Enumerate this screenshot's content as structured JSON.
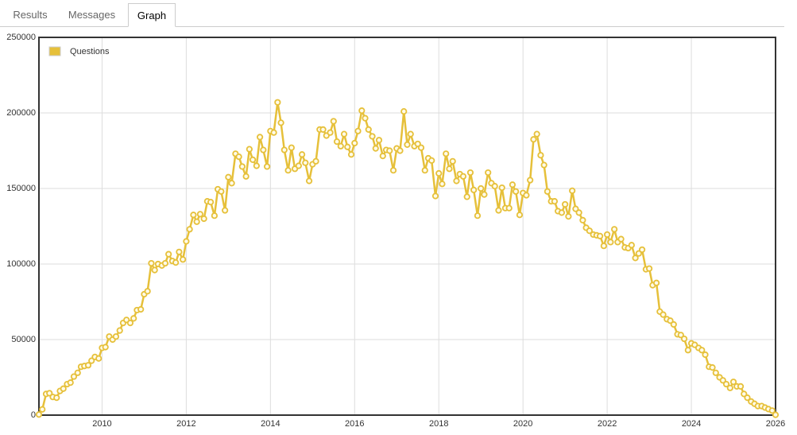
{
  "tabs": [
    "Results",
    "Messages",
    "Graph"
  ],
  "active_tab": 2,
  "chart_data": {
    "type": "line",
    "grid": true,
    "legend": "top-left",
    "xlim": [
      2008.5,
      2026
    ],
    "xticks": [
      2010,
      2012,
      2014,
      2016,
      2018,
      2020,
      2022,
      2024,
      2026
    ],
    "ylim": [
      0,
      250000
    ],
    "yticks": [
      0,
      50000,
      100000,
      150000,
      200000,
      250000
    ],
    "x": [
      2008.5,
      2008.58,
      2008.67,
      2008.75,
      2008.83,
      2008.92,
      2009,
      2009.08,
      2009.17,
      2009.25,
      2009.33,
      2009.42,
      2009.5,
      2009.58,
      2009.67,
      2009.75,
      2009.83,
      2009.92,
      2010,
      2010.08,
      2010.17,
      2010.25,
      2010.33,
      2010.42,
      2010.5,
      2010.58,
      2010.67,
      2010.75,
      2010.83,
      2010.92,
      2011,
      2011.08,
      2011.17,
      2011.25,
      2011.33,
      2011.42,
      2011.5,
      2011.58,
      2011.67,
      2011.75,
      2011.83,
      2011.92,
      2012,
      2012.08,
      2012.17,
      2012.25,
      2012.33,
      2012.42,
      2012.5,
      2012.58,
      2012.67,
      2012.75,
      2012.83,
      2012.92,
      2013,
      2013.08,
      2013.17,
      2013.25,
      2013.33,
      2013.42,
      2013.5,
      2013.58,
      2013.67,
      2013.75,
      2013.83,
      2013.92,
      2014,
      2014.08,
      2014.17,
      2014.25,
      2014.33,
      2014.42,
      2014.5,
      2014.58,
      2014.67,
      2014.75,
      2014.83,
      2014.92,
      2015,
      2015.08,
      2015.17,
      2015.25,
      2015.33,
      2015.42,
      2015.5,
      2015.58,
      2015.67,
      2015.75,
      2015.83,
      2015.92,
      2016,
      2016.08,
      2016.17,
      2016.25,
      2016.33,
      2016.42,
      2016.5,
      2016.58,
      2016.67,
      2016.75,
      2016.83,
      2016.92,
      2017,
      2017.08,
      2017.17,
      2017.25,
      2017.33,
      2017.42,
      2017.5,
      2017.58,
      2017.67,
      2017.75,
      2017.83,
      2017.92,
      2018,
      2018.08,
      2018.17,
      2018.25,
      2018.33,
      2018.42,
      2018.5,
      2018.58,
      2018.67,
      2018.75,
      2018.83,
      2018.92,
      2019,
      2019.08,
      2019.17,
      2019.25,
      2019.33,
      2019.42,
      2019.5,
      2019.58,
      2019.67,
      2019.75,
      2019.83,
      2019.92,
      2020,
      2020.08,
      2020.17,
      2020.25,
      2020.33,
      2020.42,
      2020.5,
      2020.58,
      2020.67,
      2020.75,
      2020.83,
      2020.92,
      2021,
      2021.08,
      2021.17,
      2021.25,
      2021.33,
      2021.42,
      2021.5,
      2021.58,
      2021.67,
      2021.75,
      2021.83,
      2021.92,
      2022,
      2022.08,
      2022.17,
      2022.25,
      2022.33,
      2022.42,
      2022.5,
      2022.58,
      2022.67,
      2022.75,
      2022.83,
      2022.92,
      2023,
      2023.08,
      2023.17,
      2023.25,
      2023.33,
      2023.42,
      2023.5,
      2023.58,
      2023.67,
      2023.75,
      2023.83,
      2023.92,
      2024,
      2024.08,
      2024.17,
      2024.25,
      2024.33,
      2024.42,
      2024.5,
      2024.58,
      2024.67,
      2024.75,
      2024.83,
      2024.92,
      2025,
      2025.08,
      2025.17,
      2025.25,
      2025.33,
      2025.42,
      2025.5,
      2025.58,
      2025.67,
      2025.75,
      2025.83,
      2025.92,
      2026
    ],
    "series": [
      {
        "name": "Questions",
        "color": "#e6c03a",
        "values": [
          400,
          3800,
          14000,
          14500,
          12000,
          11500,
          16000,
          17500,
          20500,
          21500,
          25500,
          28000,
          32000,
          32500,
          33000,
          36000,
          38500,
          37500,
          44500,
          45000,
          52000,
          50000,
          52000,
          56000,
          61000,
          63000,
          61000,
          64000,
          69500,
          70000,
          80000,
          82000,
          100500,
          96000,
          100000,
          99000,
          100500,
          106500,
          102000,
          101000,
          108000,
          103000,
          115000,
          123000,
          132500,
          128000,
          133000,
          130000,
          141500,
          141000,
          132000,
          149500,
          148000,
          135500,
          157500,
          153500,
          173000,
          171000,
          164500,
          158000,
          176000,
          169000,
          165000,
          184000,
          175500,
          164500,
          188000,
          187000,
          207000,
          193500,
          175500,
          162000,
          177000,
          163000,
          165000,
          172500,
          167000,
          155000,
          166000,
          168000,
          189000,
          189000,
          185000,
          187000,
          194500,
          181000,
          178000,
          186000,
          177500,
          172500,
          180000,
          188000,
          201500,
          196500,
          189000,
          184500,
          176500,
          182000,
          171500,
          175500,
          175000,
          162000,
          176500,
          175000,
          201000,
          179000,
          186000,
          178000,
          179500,
          177000,
          162000,
          170000,
          168500,
          145000,
          160000,
          153000,
          173000,
          163000,
          168000,
          155000,
          159500,
          158000,
          144500,
          160500,
          149000,
          132000,
          150000,
          146000,
          160500,
          153500,
          151500,
          135500,
          150500,
          137000,
          137000,
          152500,
          148000,
          132500,
          147000,
          145500,
          155500,
          182500,
          186000,
          172000,
          165500,
          148000,
          141500,
          141500,
          135000,
          134000,
          139500,
          131500,
          148500,
          136500,
          134000,
          129000,
          124000,
          122000,
          119500,
          119000,
          118500,
          112000,
          119500,
          114500,
          123000,
          114500,
          116500,
          111000,
          110500,
          112500,
          104000,
          107000,
          109500,
          96500,
          97000,
          86000,
          87500,
          68500,
          66500,
          63500,
          62500,
          60000,
          53500,
          53000,
          50500,
          43000,
          47500,
          46500,
          44500,
          43000,
          40000,
          32000,
          31500,
          28000,
          25000,
          23000,
          20500,
          18000,
          22000,
          19000,
          19000,
          14000,
          11500,
          9000,
          7500,
          6000,
          6000,
          5000,
          4000,
          3000,
          200
        ]
      }
    ]
  }
}
